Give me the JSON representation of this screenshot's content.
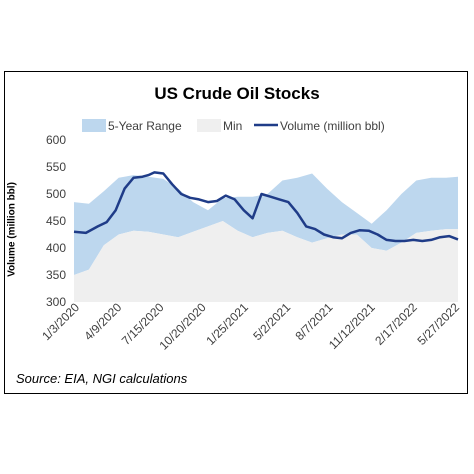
{
  "chart_data": {
    "type": "area",
    "title": "US Crude Oil Stocks",
    "ylabel": "Volume (million bbl)",
    "xlabel": "",
    "ylim": [
      300,
      600
    ],
    "yticks": [
      300,
      350,
      400,
      450,
      500,
      550,
      600
    ],
    "xrange": [
      "2020-01-03",
      "2022-06-24"
    ],
    "xtick_labels": [
      "1/3/2020",
      "4/9/2020",
      "7/15/2020",
      "10/20/2020",
      "1/25/2021",
      "5/2/2021",
      "8/7/2021",
      "11/12/2021",
      "2/17/2022",
      "5/27/2022"
    ],
    "legend": {
      "placement": "top",
      "entries": [
        "5-Year Range",
        "Min",
        "Volume (million bbl)"
      ]
    },
    "grid": false,
    "colors": {
      "range": "#bdd7ee",
      "min": "#efefef",
      "volume": "#1f3c88"
    },
    "series": [
      {
        "name": "5-Year Range",
        "x": [
          "2020-01-03",
          "2020-02-07",
          "2020-03-13",
          "2020-04-17",
          "2020-05-22",
          "2020-06-26",
          "2020-07-31",
          "2020-09-04",
          "2020-10-09",
          "2020-11-13",
          "2020-12-18",
          "2021-01-22",
          "2021-02-26",
          "2021-04-02",
          "2021-05-07",
          "2021-06-11",
          "2021-07-16",
          "2021-08-20",
          "2021-09-24",
          "2021-10-29",
          "2021-12-03",
          "2022-01-07",
          "2022-02-11",
          "2022-03-18",
          "2022-04-22",
          "2022-05-27",
          "2022-06-24"
        ],
        "high": [
          485,
          482,
          505,
          530,
          535,
          532,
          528,
          510,
          485,
          470,
          492,
          495,
          495,
          500,
          525,
          530,
          538,
          510,
          485,
          465,
          445,
          470,
          500,
          525,
          530,
          530,
          532
        ],
        "low": [
          350,
          360,
          405,
          425,
          432,
          430,
          425,
          420,
          430,
          440,
          450,
          432,
          420,
          428,
          432,
          420,
          410,
          418,
          425,
          425,
          400,
          395,
          410,
          428,
          432,
          435,
          435
        ]
      },
      {
        "name": "Min",
        "x": [
          "2020-01-03",
          "2020-02-07",
          "2020-03-13",
          "2020-04-17",
          "2020-05-22",
          "2020-06-26",
          "2020-07-31",
          "2020-09-04",
          "2020-10-09",
          "2020-11-13",
          "2020-12-18",
          "2021-01-22",
          "2021-02-26",
          "2021-04-02",
          "2021-05-07",
          "2021-06-11",
          "2021-07-16",
          "2021-08-20",
          "2021-09-24",
          "2021-10-29",
          "2021-12-03",
          "2022-01-07",
          "2022-02-11",
          "2022-03-18",
          "2022-04-22",
          "2022-05-27",
          "2022-06-24"
        ],
        "values": [
          350,
          360,
          405,
          425,
          432,
          430,
          425,
          420,
          430,
          440,
          450,
          432,
          420,
          428,
          432,
          420,
          410,
          418,
          425,
          425,
          400,
          395,
          410,
          428,
          432,
          435,
          435
        ]
      },
      {
        "name": "Volume (million bbl)",
        "x": [
          "2020-01-03",
          "2020-01-31",
          "2020-02-28",
          "2020-03-20",
          "2020-04-10",
          "2020-05-01",
          "2020-05-22",
          "2020-06-12",
          "2020-06-26",
          "2020-07-10",
          "2020-07-31",
          "2020-08-21",
          "2020-09-11",
          "2020-10-02",
          "2020-10-23",
          "2020-11-13",
          "2020-12-04",
          "2020-12-25",
          "2021-01-15",
          "2021-02-05",
          "2021-02-26",
          "2021-03-19",
          "2021-04-09",
          "2021-04-30",
          "2021-05-21",
          "2021-06-11",
          "2021-07-02",
          "2021-07-23",
          "2021-08-13",
          "2021-09-03",
          "2021-09-24",
          "2021-10-15",
          "2021-11-05",
          "2021-11-26",
          "2021-12-17",
          "2022-01-07",
          "2022-01-28",
          "2022-02-18",
          "2022-03-11",
          "2022-04-01",
          "2022-04-22",
          "2022-05-13",
          "2022-06-03",
          "2022-06-24"
        ],
        "values": [
          430,
          428,
          440,
          448,
          470,
          510,
          530,
          532,
          535,
          540,
          538,
          518,
          500,
          493,
          490,
          485,
          487,
          497,
          490,
          470,
          455,
          500,
          495,
          490,
          485,
          465,
          440,
          435,
          425,
          420,
          418,
          428,
          433,
          432,
          425,
          415,
          413,
          413,
          415,
          413,
          415,
          420,
          422,
          416
        ]
      }
    ]
  },
  "source_note": "Source: EIA, NGI calculations"
}
